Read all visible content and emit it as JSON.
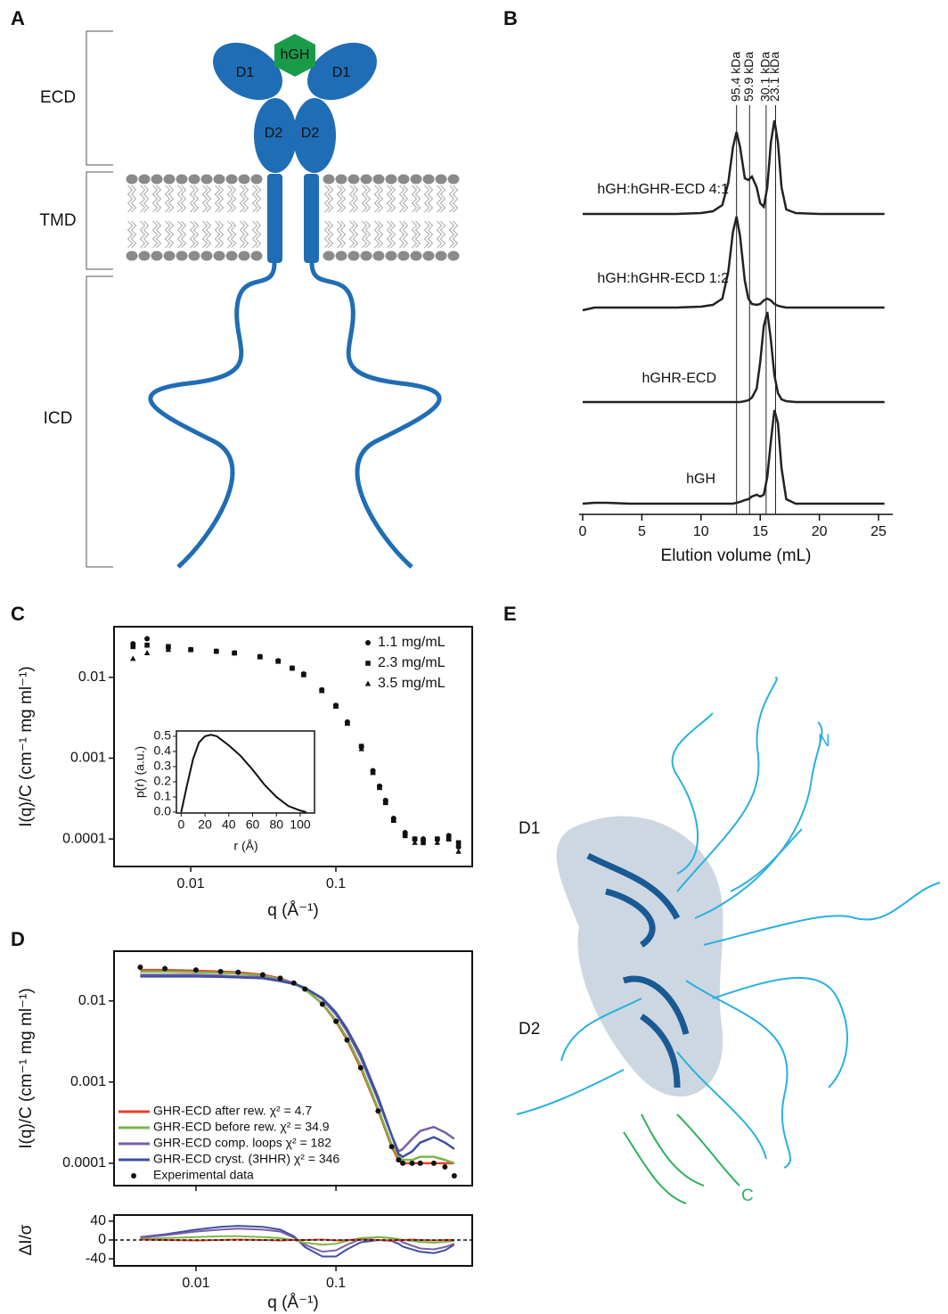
{
  "panel_labels": [
    "A",
    "B",
    "C",
    "D",
    "E"
  ],
  "diagram": {
    "brackets": [
      "ECD",
      "TMD",
      "ICD"
    ],
    "domains": [
      "D1",
      "D1",
      "D2",
      "D2"
    ],
    "ligand": "hGH"
  },
  "chart_data": [
    {
      "type": "line",
      "xlabel": "Elution volume (mL)",
      "x": [
        0,
        1,
        2,
        4,
        6,
        8,
        10,
        11,
        11.8,
        12.3,
        12.7,
        13.0,
        13.3,
        13.7,
        14.0,
        14.3,
        14.7,
        15.0,
        15.3,
        15.6,
        15.9,
        16.2,
        16.5,
        16.8,
        17.2,
        18,
        20,
        25.5
      ],
      "series": [
        {
          "name": "hGH:hGHR-ECD 4:1",
          "color": "#222222",
          "values": [
            0,
            0,
            0,
            0,
            0,
            0,
            0.01,
            0.03,
            0.1,
            0.35,
            0.75,
            0.92,
            0.75,
            0.4,
            0.38,
            0.42,
            0.3,
            0.12,
            0.08,
            0.3,
            0.8,
            1.05,
            0.8,
            0.3,
            0.05,
            0.01,
            0,
            0
          ]
        },
        {
          "name": "hGH:hGHR-ECD 1:2",
          "color": "#222222",
          "values": [
            -0.03,
            0,
            0,
            0,
            0,
            0,
            0.01,
            0.03,
            0.1,
            0.4,
            0.85,
            1.02,
            0.8,
            0.3,
            0.1,
            0.04,
            0.03,
            0.04,
            0.08,
            0.1,
            0.08,
            0.04,
            0.02,
            0.01,
            0,
            0,
            0,
            0
          ]
        },
        {
          "name": "hGHR-ECD",
          "color": "#222222",
          "values": [
            0,
            0,
            0,
            0,
            0,
            0,
            0,
            0,
            0,
            0,
            0,
            0,
            0,
            0.01,
            0.02,
            0.05,
            0.15,
            0.45,
            0.85,
            1.01,
            0.7,
            0.3,
            0.1,
            0.03,
            0.01,
            0,
            0,
            0
          ]
        },
        {
          "name": "hGH",
          "color": "#222222",
          "values": [
            0,
            0.01,
            0.01,
            0,
            0,
            0,
            0,
            0,
            0,
            0,
            0,
            0.01,
            0.02,
            0.04,
            0.05,
            0.08,
            0.1,
            0.08,
            0.1,
            0.3,
            0.7,
            1.05,
            0.9,
            0.4,
            0.05,
            0,
            0,
            0
          ]
        }
      ],
      "reference_lines": [
        {
          "value": 13.0,
          "label": "95.4 kDa"
        },
        {
          "value": 14.1,
          "label": "59.9 kDa"
        },
        {
          "value": 15.5,
          "label": "30.1 kDa"
        },
        {
          "value": 16.3,
          "label": "23.1 kDa"
        }
      ],
      "xlim": [
        -0.3,
        26.2
      ],
      "xticks": [
        0,
        5,
        10,
        15,
        20,
        25
      ]
    },
    {
      "type": "scatter",
      "xlabel": "q (Å⁻¹)",
      "ylabel": "I(q)/C (cm⁻¹ mg ml⁻¹)",
      "log_x": true,
      "log_y": true,
      "x": [
        0.004,
        0.005,
        0.007,
        0.01,
        0.015,
        0.02,
        0.03,
        0.04,
        0.05,
        0.06,
        0.08,
        0.1,
        0.12,
        0.15,
        0.18,
        0.2,
        0.22,
        0.25,
        0.3,
        0.35,
        0.4,
        0.5,
        0.6,
        0.7
      ],
      "series": [
        {
          "name": "1.1 mg/mL",
          "marker": "circle",
          "color": "#111111",
          "values": [
            0.026,
            0.03,
            0.023,
            0.022,
            0.021,
            0.02,
            0.018,
            0.016,
            0.013,
            0.011,
            0.007,
            0.0045,
            0.0028,
            0.0014,
            0.0007,
            0.00045,
            0.0003,
            0.00018,
            0.00012,
            0.0001,
            0.0001,
            0.0001,
            0.00011,
            8e-05
          ]
        },
        {
          "name": "2.3 mg/mL",
          "marker": "square",
          "color": "#111111",
          "values": [
            0.024,
            0.025,
            0.024,
            0.022,
            0.021,
            0.02,
            0.018,
            0.0158,
            0.013,
            0.0108,
            0.0069,
            0.0044,
            0.0027,
            0.0014,
            0.00068,
            0.00044,
            0.00029,
            0.00017,
            0.00011,
            0.0001,
            9e-05,
            0.0001,
            0.0001,
            9e-05
          ]
        },
        {
          "name": "3.5 mg/mL",
          "marker": "triangle",
          "color": "#111111",
          "values": [
            0.017,
            0.02,
            0.022,
            0.022,
            0.021,
            0.02,
            0.0178,
            0.0157,
            0.0129,
            0.0107,
            0.0068,
            0.0044,
            0.0027,
            0.0013,
            0.00066,
            0.00043,
            0.00028,
            0.00017,
            0.00012,
            9e-05,
            0.0001,
            9e-05,
            0.0001,
            7e-05
          ]
        }
      ],
      "xlim": [
        0.00296,
        0.87
      ],
      "ylim": [
        4.57e-05,
        0.0423
      ],
      "xticks": [
        0.01,
        0.1
      ],
      "yticks": [
        0.01,
        0.001,
        0.0001
      ],
      "inset": {
        "type": "line",
        "xlabel": "r (Å)",
        "ylabel": "p(r) (a.u.)",
        "x": [
          0,
          5,
          10,
          15,
          20,
          25,
          30,
          40,
          50,
          60,
          70,
          80,
          90,
          100,
          105
        ],
        "values": [
          0,
          0.18,
          0.35,
          0.46,
          0.5,
          0.51,
          0.5,
          0.44,
          0.37,
          0.28,
          0.18,
          0.1,
          0.04,
          0.01,
          0
        ],
        "color": "#111111",
        "xlim": [
          -4,
          112
        ],
        "ylim": [
          -0.006,
          0.535
        ],
        "xticks": [
          0,
          20,
          40,
          60,
          80,
          100
        ],
        "yticks": [
          {
            "value": 0,
            "label": "0.0"
          },
          0.1,
          0.2,
          0.3,
          0.4,
          0.5
        ]
      }
    },
    {
      "type": "line",
      "xlabel": "q (Å⁻¹)",
      "ylabel": "I(q)/C (cm⁻¹ mg ml⁻¹)",
      "log_x": true,
      "log_y": true,
      "x": [
        0.004,
        0.006,
        0.01,
        0.015,
        0.02,
        0.03,
        0.04,
        0.05,
        0.06,
        0.08,
        0.1,
        0.12,
        0.15,
        0.2,
        0.25,
        0.28,
        0.3,
        0.35,
        0.4,
        0.5,
        0.6,
        0.7
      ],
      "series": [
        {
          "name": "GHR-ECD after rew. χ² = 4.7",
          "color": "#e8412b",
          "values": [
            0.024,
            0.024,
            0.0235,
            0.023,
            0.0225,
            0.021,
            0.019,
            0.0165,
            0.014,
            0.0092,
            0.0056,
            0.0033,
            0.0015,
            0.00045,
            0.00016,
            0.00011,
            0.0001,
            0.0001,
            0.0001,
            0.0001,
            0.0001,
            0.0001
          ]
        },
        {
          "name": "GHR-ECD before rew. χ² = 34.9",
          "color": "#7ab648",
          "values": [
            0.023,
            0.023,
            0.0226,
            0.0222,
            0.0217,
            0.0204,
            0.0186,
            0.0163,
            0.0139,
            0.0093,
            0.0058,
            0.0035,
            0.0016,
            0.00047,
            0.00017,
            0.00012,
            0.00011,
            0.00011,
            0.00012,
            0.00012,
            0.00011,
            0.0001
          ]
        },
        {
          "name": "GHR-ECD comp. loops χ² = 182",
          "color": "#7b5ea7",
          "values": [
            0.021,
            0.021,
            0.021,
            0.0205,
            0.02,
            0.0195,
            0.018,
            0.0165,
            0.0145,
            0.0105,
            0.0068,
            0.0042,
            0.002,
            0.0006,
            0.00022,
            0.00014,
            0.00015,
            0.0002,
            0.00025,
            0.00028,
            0.00024,
            0.0002
          ]
        },
        {
          "name": "GHR-ECD cryst. (3HHR) χ² = 346",
          "color": "#3e4fa3",
          "values": [
            0.02,
            0.02,
            0.02,
            0.0198,
            0.0195,
            0.019,
            0.0175,
            0.0162,
            0.0145,
            0.0108,
            0.0072,
            0.0045,
            0.0022,
            0.00065,
            0.00022,
            0.00013,
            0.00012,
            0.00014,
            0.00018,
            0.00021,
            0.00018,
            0.00015
          ]
        },
        {
          "name": "Experimental data",
          "marker": "circle",
          "color": "#111111",
          "values": [
            0.026,
            0.025,
            0.024,
            0.023,
            0.0225,
            0.021,
            0.019,
            0.0166,
            0.014,
            0.0091,
            0.0056,
            0.0033,
            0.0015,
            0.00044,
            0.00016,
            0.00011,
            0.0001,
            0.0001,
            0.0001,
            0.0001,
            9e-05,
            7e-05
          ]
        }
      ],
      "xlim": [
        0.0026,
        0.94
      ],
      "ylim": [
        5.3e-05,
        0.041
      ],
      "xticks": [
        0.01,
        0.1
      ],
      "yticks": [
        0.01,
        0.001,
        0.0001
      ],
      "residuals": {
        "ylabel": "ΔI/σ",
        "ylim": [
          -55,
          53
        ],
        "yticks": [
          40,
          0,
          -40
        ],
        "xticks": [
          0.01,
          0.1
        ],
        "series": [
          {
            "color": "#e8412b",
            "values": [
              1,
              0,
              -1,
              0,
              1,
              0,
              -1,
              0,
              0,
              1,
              -1,
              0,
              1,
              0,
              -1,
              0,
              0,
              1,
              0,
              -1,
              0,
              0
            ]
          },
          {
            "color": "#7ab648",
            "values": [
              2,
              4,
              6,
              8,
              8,
              6,
              4,
              0,
              -6,
              -10,
              -8,
              -2,
              4,
              6,
              4,
              2,
              0,
              -2,
              -4,
              -6,
              -4,
              -2
            ]
          },
          {
            "color": "#7b5ea7",
            "values": [
              5,
              10,
              18,
              22,
              24,
              22,
              18,
              5,
              -10,
              -25,
              -22,
              -10,
              2,
              6,
              4,
              0,
              -5,
              -12,
              -18,
              -20,
              -15,
              -8
            ]
          },
          {
            "color": "#3e4fa3",
            "values": [
              6,
              12,
              22,
              28,
              30,
              28,
              22,
              8,
              -15,
              -35,
              -35,
              -20,
              -5,
              0,
              -2,
              -8,
              -14,
              -20,
              -25,
              -28,
              -22,
              -10
            ]
          }
        ]
      }
    }
  ],
  "structure": {
    "labels": [
      "D1",
      "D2",
      "N",
      "C"
    ]
  }
}
